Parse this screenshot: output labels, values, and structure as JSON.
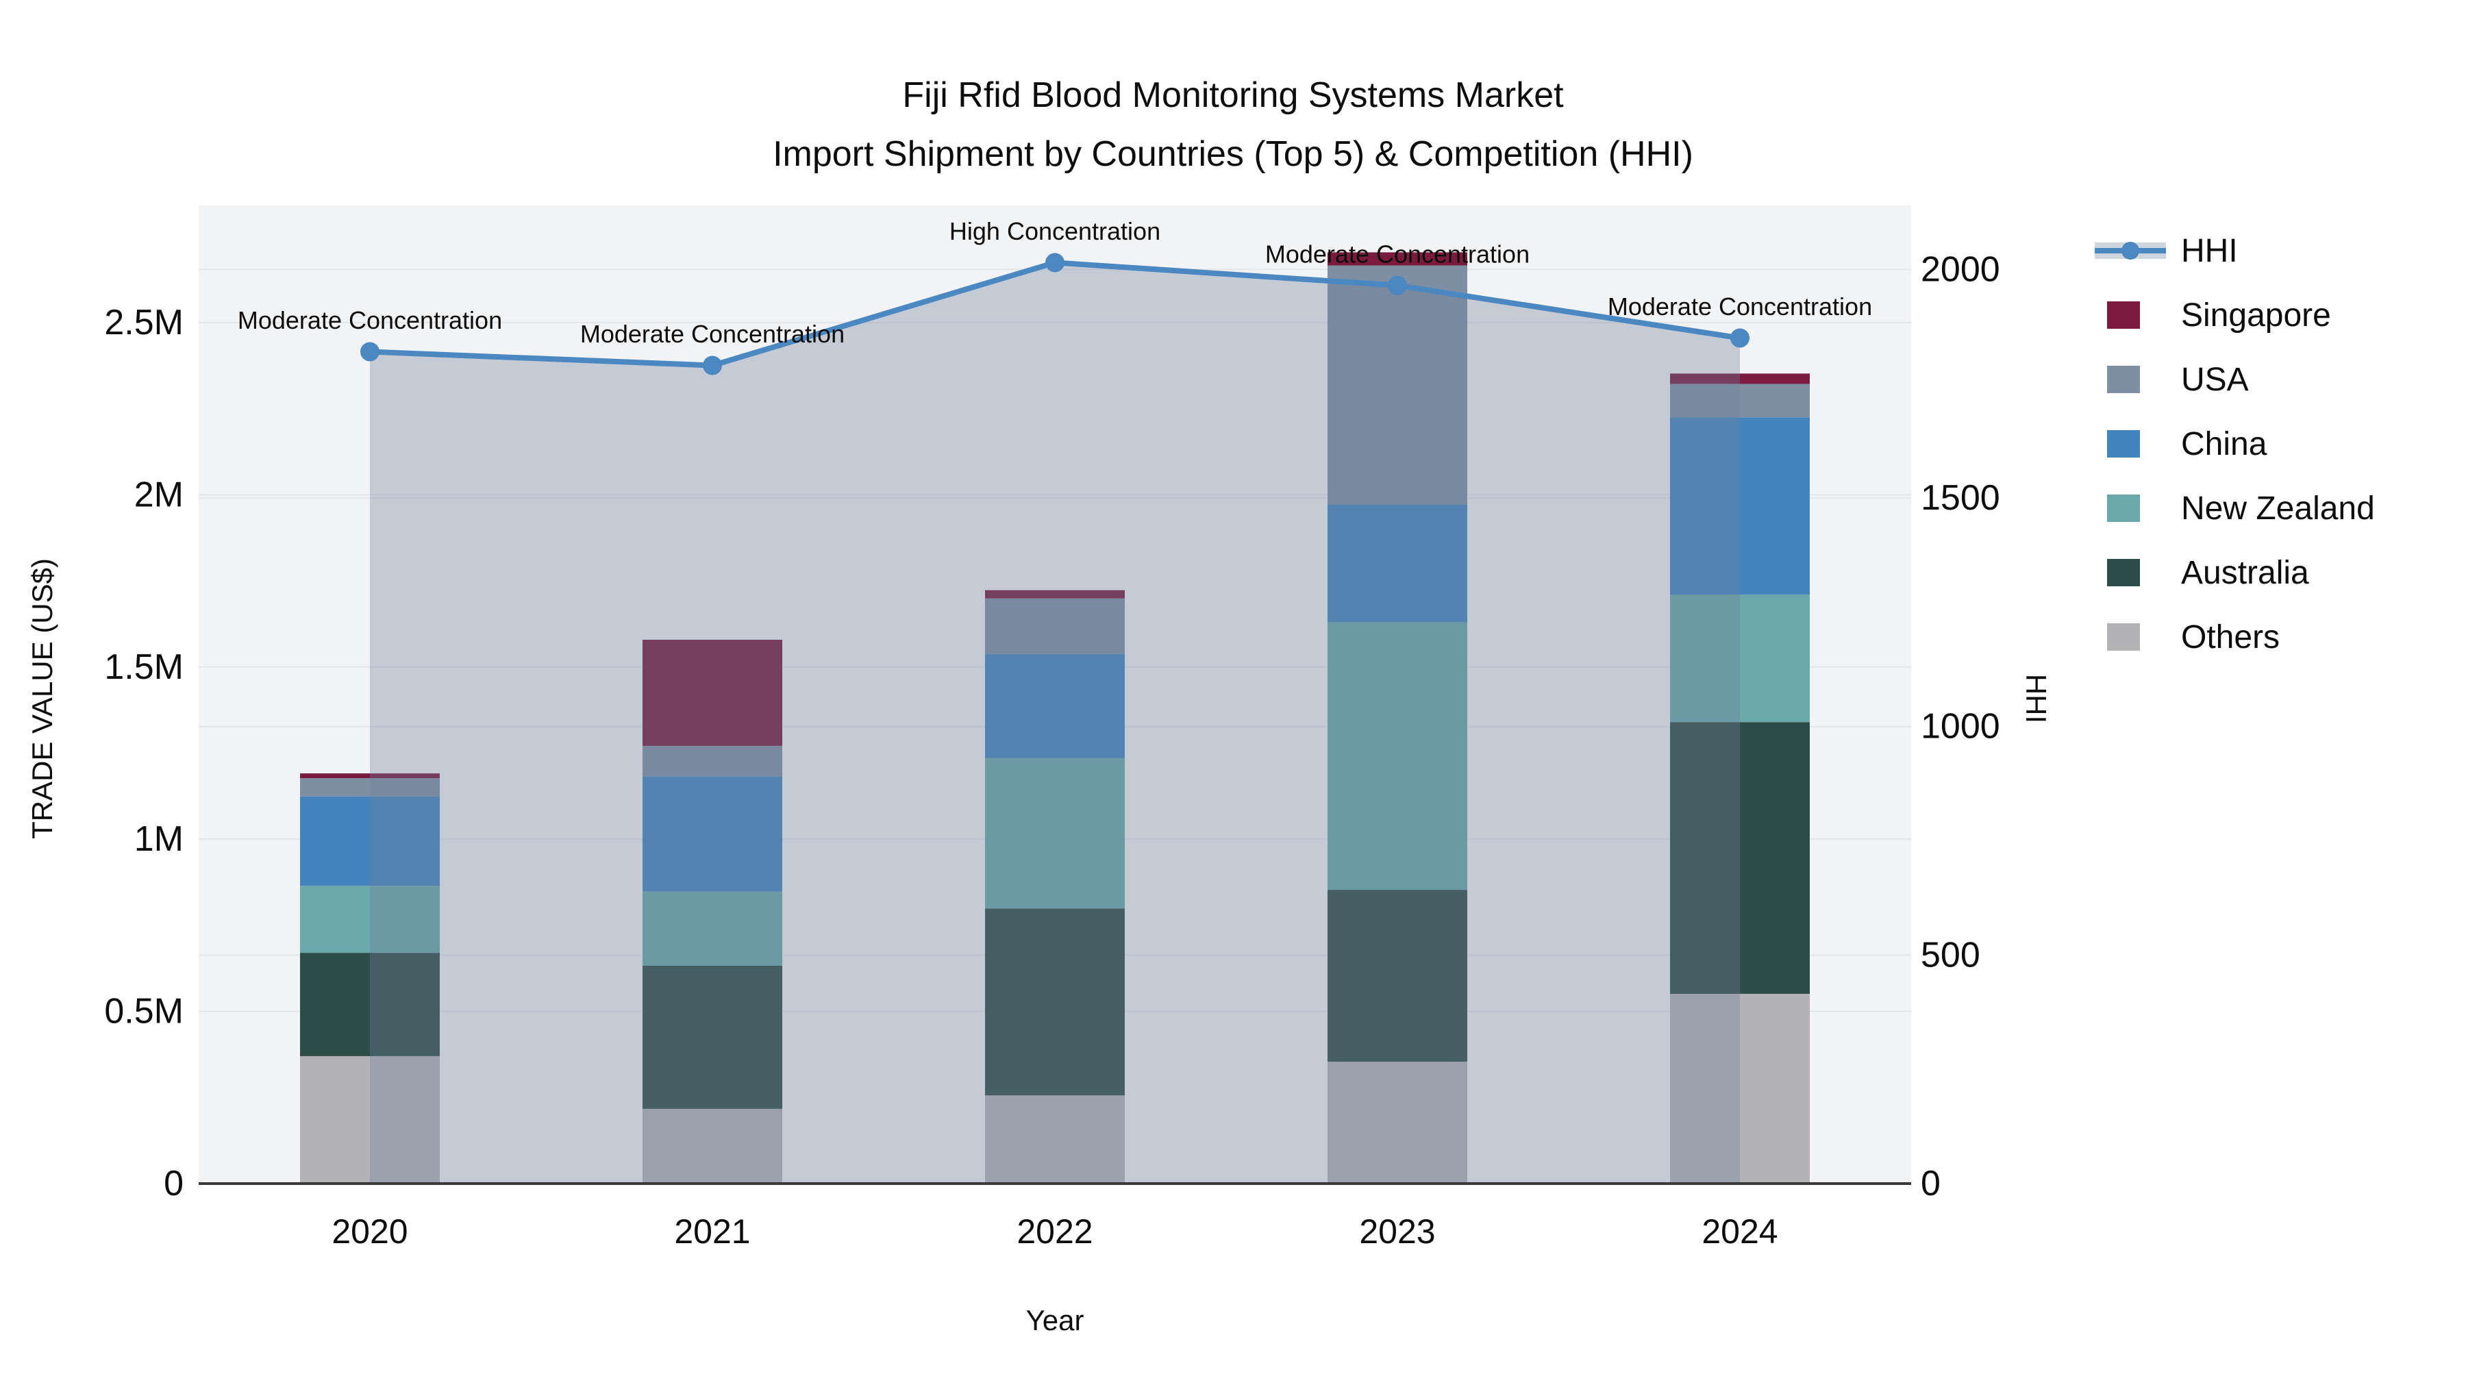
{
  "title": {
    "line1": "Fiji Rfid Blood Monitoring Systems Market",
    "line2": "Import Shipment by Countries (Top 5) & Competition (HHI)"
  },
  "axes": {
    "x": {
      "title": "Year",
      "tick_labels": [
        "2020",
        "2021",
        "2022",
        "2023",
        "2024"
      ]
    },
    "y_left": {
      "title": "TRADE VALUE (US$)",
      "ticks": [
        {
          "label": "0",
          "m": 0
        },
        {
          "label": "0.5M",
          "m": 0.5
        },
        {
          "label": "1M",
          "m": 1
        },
        {
          "label": "1.5M",
          "m": 1.5
        },
        {
          "label": "2M",
          "m": 2
        },
        {
          "label": "2.5M",
          "m": 2.5
        }
      ]
    },
    "y_right": {
      "title": "HHI",
      "ticks": [
        {
          "label": "0",
          "v": 0
        },
        {
          "label": "500",
          "v": 500
        },
        {
          "label": "1000",
          "v": 1000
        },
        {
          "label": "1500",
          "v": 1500
        },
        {
          "label": "2000",
          "v": 2000
        }
      ]
    }
  },
  "colors": {
    "hhi_line": "#4B87C0",
    "hhi_area_fill": "rgba(112,130,155,0.35)",
    "legend_band": "#CFD5DD",
    "plot_background": "#F2F3F4",
    "gridline": "#E3E5E8",
    "axis_line": "#3A3A3A",
    "text": "#0d0d0d"
  },
  "legend": {
    "items": [
      {
        "label": "HHI",
        "type": "line",
        "color": "#4B87C0"
      },
      {
        "label": "Singapore",
        "type": "swatch",
        "color": "#7A1B3E"
      },
      {
        "label": "USA",
        "type": "swatch",
        "color": "#7E8FA4"
      },
      {
        "label": "China",
        "type": "swatch",
        "color": "#4384BE"
      },
      {
        "label": "New Zealand",
        "type": "swatch",
        "color": "#6BA8A9"
      },
      {
        "label": "Australia",
        "type": "swatch",
        "color": "#2E4D48"
      },
      {
        "label": "Others",
        "type": "swatch",
        "color": "#B3B3B5"
      }
    ]
  },
  "chart_data": {
    "type": "bar",
    "subtype": "stacked-bars-with-secondary-axis-line",
    "title": "Fiji Rfid Blood Monitoring Systems Market Import Shipment by Countries (Top 5) & Competition (HHI)",
    "xlabel": "Year",
    "ylabel_left": "TRADE VALUE (US$)",
    "ylabel_right": "HHI",
    "categories": [
      "2020",
      "2021",
      "2022",
      "2023",
      "2024"
    ],
    "bar_value_unit": "US$ million",
    "series": [
      {
        "name": "Singapore",
        "color": "#7A1B3E",
        "values": [
          0.014,
          0.308,
          0.024,
          0.038,
          0.03
        ]
      },
      {
        "name": "USA",
        "color": "#7E8FA4",
        "values": [
          0.053,
          0.089,
          0.161,
          0.694,
          0.097
        ]
      },
      {
        "name": "China",
        "color": "#4384BE",
        "values": [
          0.259,
          0.334,
          0.302,
          0.342,
          0.515
        ]
      },
      {
        "name": "New Zealand",
        "color": "#6BA8A9",
        "values": [
          0.195,
          0.215,
          0.437,
          0.777,
          0.37
        ]
      },
      {
        "name": "Australia",
        "color": "#2E4D48",
        "values": [
          0.3,
          0.416,
          0.543,
          0.499,
          0.789
        ]
      },
      {
        "name": "Others",
        "color": "#B3B3B5",
        "values": [
          0.37,
          0.217,
          0.256,
          0.354,
          0.551
        ]
      }
    ],
    "stack_order_bottom_to_top": [
      "Others",
      "Australia",
      "New Zealand",
      "China",
      "USA",
      "Singapore"
    ],
    "bar_totals_m": [
      1.19,
      1.58,
      1.72,
      2.7,
      2.35
    ],
    "line_series": {
      "name": "HHI",
      "axis": "right",
      "color": "#4B87C0",
      "area_fill": "rgba(112,130,155,0.35)",
      "values": [
        1820,
        1790,
        2015,
        1965,
        1850
      ]
    },
    "annotations": [
      {
        "category": "2020",
        "text": "Moderate Concentration"
      },
      {
        "category": "2021",
        "text": "Moderate Concentration"
      },
      {
        "category": "2022",
        "text": "High Concentration"
      },
      {
        "category": "2023",
        "text": "Moderate Concentration"
      },
      {
        "category": "2024",
        "text": "Moderate Concentration"
      }
    ],
    "ylim_left_m": [
      0,
      2.84
    ],
    "ylim_right": [
      0,
      2140
    ],
    "grid": true,
    "legend_position": "right"
  }
}
